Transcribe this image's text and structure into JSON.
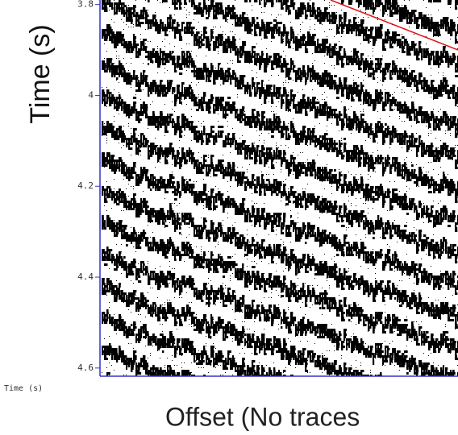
{
  "chart_data": {
    "type": "seismic",
    "ylabel": "Time (s)",
    "axis_caption": "Time (s)",
    "xlabel": "Offset (No traces",
    "ylim": [
      3.79,
      4.618
    ],
    "yticks": [
      3.8,
      4,
      4.2,
      4.4,
      4.6
    ],
    "axis_color": "#3333cc"
  }
}
